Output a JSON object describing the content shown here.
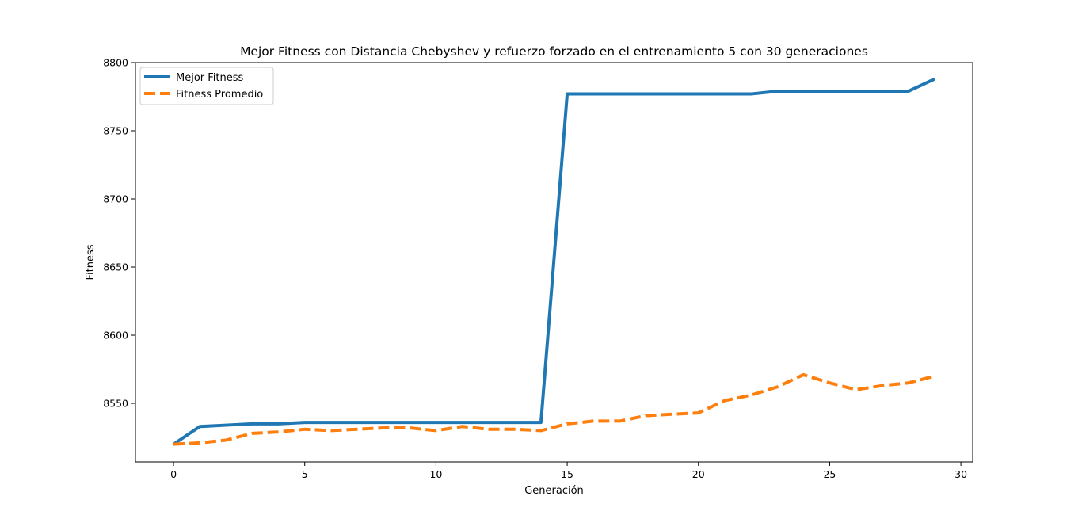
{
  "chart_data": {
    "type": "line",
    "title": "Mejor Fitness con Distancia Chebyshev y refuerzo forzado en el entrenamiento 5 con 30 generaciones",
    "xlabel": "Generación",
    "ylabel": "Fitness",
    "xlim": [
      -1.45,
      30.45
    ],
    "ylim": [
      8507,
      8800
    ],
    "xticks": [
      0,
      5,
      10,
      15,
      20,
      25,
      30
    ],
    "yticks": [
      8550,
      8600,
      8650,
      8700,
      8750,
      8800
    ],
    "grid": false,
    "legend_position": "upper-left",
    "x": [
      0,
      1,
      2,
      3,
      4,
      5,
      6,
      7,
      8,
      9,
      10,
      11,
      12,
      13,
      14,
      15,
      16,
      17,
      18,
      19,
      20,
      21,
      22,
      23,
      24,
      25,
      26,
      27,
      28,
      29
    ],
    "series": [
      {
        "name": "Mejor Fitness",
        "color": "#1f77b4",
        "style": "solid",
        "values": [
          8520,
          8533,
          8534,
          8535,
          8535,
          8536,
          8536,
          8536,
          8536,
          8536,
          8536,
          8536,
          8536,
          8536,
          8536,
          8777,
          8777,
          8777,
          8777,
          8777,
          8777,
          8777,
          8777,
          8779,
          8779,
          8779,
          8779,
          8779,
          8779,
          8788
        ]
      },
      {
        "name": "Fitness Promedio",
        "color": "#ff7f0e",
        "style": "dashed",
        "values": [
          8520,
          8521,
          8523,
          8528,
          8529,
          8531,
          8530,
          8531,
          8532,
          8532,
          8530,
          8533,
          8531,
          8531,
          8530,
          8535,
          8537,
          8537,
          8541,
          8542,
          8543,
          8552,
          8556,
          8562,
          8571,
          8565,
          8560,
          8563,
          8565,
          8570
        ]
      }
    ]
  }
}
